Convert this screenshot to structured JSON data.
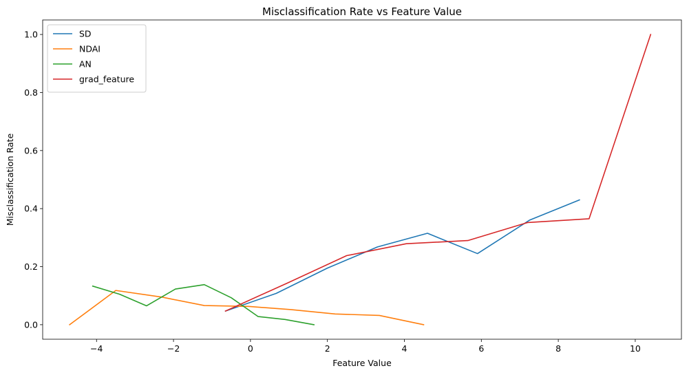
{
  "chart_data": {
    "type": "line",
    "title": "Misclassification Rate vs Feature Value",
    "xlabel": "Feature Value",
    "ylabel": "Misclassification Rate",
    "xlim": [
      -5.4,
      11.2
    ],
    "ylim": [
      -0.05,
      1.05
    ],
    "xticks": [
      -4,
      -2,
      0,
      2,
      4,
      6,
      8,
      10
    ],
    "xtick_labels": [
      "−4",
      "−2",
      "0",
      "2",
      "4",
      "6",
      "8",
      "10"
    ],
    "yticks": [
      0.0,
      0.2,
      0.4,
      0.6,
      0.8,
      1.0
    ],
    "ytick_labels": [
      "0.0",
      "0.2",
      "0.4",
      "0.6",
      "0.8",
      "1.0"
    ],
    "grid": false,
    "legend_position": "top-left",
    "series": [
      {
        "name": "SD",
        "color": "#1f77b4",
        "x": [
          -0.65,
          0.67,
          2.0,
          3.3,
          4.6,
          5.9,
          7.25,
          8.55
        ],
        "y": [
          0.047,
          0.108,
          0.195,
          0.268,
          0.315,
          0.245,
          0.36,
          0.43
        ]
      },
      {
        "name": "NDAI",
        "color": "#ff7f0e",
        "x": [
          -4.7,
          -3.5,
          -2.3,
          -1.2,
          -0.05,
          1.05,
          2.2,
          3.35,
          4.5
        ],
        "y": [
          0.0,
          0.118,
          0.095,
          0.066,
          0.063,
          0.052,
          0.037,
          0.032,
          0.0
        ]
      },
      {
        "name": "AN",
        "color": "#2ca02c",
        "x": [
          -4.1,
          -3.4,
          -2.7,
          -1.95,
          -1.2,
          -0.5,
          0.2,
          0.9,
          1.65
        ],
        "y": [
          0.133,
          0.105,
          0.065,
          0.123,
          0.138,
          0.093,
          0.028,
          0.018,
          0.0
        ]
      },
      {
        "name": "grad_feature",
        "color": "#d62728",
        "x": [
          -0.65,
          0.95,
          2.5,
          4.05,
          5.65,
          7.2,
          8.8,
          10.4
        ],
        "y": [
          0.047,
          0.143,
          0.238,
          0.279,
          0.29,
          0.352,
          0.365,
          1.0
        ]
      }
    ]
  }
}
